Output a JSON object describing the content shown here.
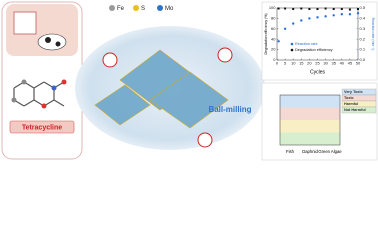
{
  "legend": [
    {
      "label": "Fe",
      "color": "#9a9a9a"
    },
    {
      "label": "S",
      "color": "#e8c21a"
    },
    {
      "label": "Mo",
      "color": "#2c74c9"
    }
  ],
  "molecule_label": "Tetracycline",
  "process_label": "Ball-milling",
  "chart_data": [
    {
      "type": "scatter",
      "xlabel": "Cycles",
      "ylabel": "Degradation efficiency (%)",
      "y2label": "Reaction rate (min⁻¹)",
      "xlim": [
        0,
        50
      ],
      "xticks": [
        0,
        5,
        10,
        15,
        20,
        25,
        30,
        35,
        40,
        45,
        50
      ],
      "ylim": [
        0,
        100
      ],
      "yticks": [
        0,
        20,
        40,
        60,
        80,
        100
      ],
      "y2lim": [
        0,
        0.5
      ],
      "y2ticks": [
        {
          "value": 0,
          "label": "0.0"
        },
        0.1,
        0.2,
        0.3,
        0.4,
        0.5
      ],
      "x": [
        1,
        5,
        10,
        15,
        20,
        25,
        30,
        35,
        40,
        45,
        50
      ],
      "series": [
        {
          "name": "Reaction rate",
          "color": "#2a6fd6",
          "axis": "y2",
          "values": [
            0.18,
            0.3,
            0.35,
            0.38,
            0.4,
            0.41,
            0.42,
            0.43,
            0.44,
            0.44,
            0.45
          ]
        },
        {
          "name": "Degradation efficiency",
          "color": "#111111",
          "values": [
            99,
            99,
            98,
            99,
            98,
            98,
            99,
            98,
            98,
            97,
            98
          ]
        }
      ]
    },
    {
      "type": "toxicity",
      "categories": [
        "Fish",
        "Daphnid",
        "Green Algae"
      ],
      "bands": [
        {
          "name": "Very Toxic",
          "color": "#cfe3f5"
        },
        {
          "name": "Toxic",
          "color": "#f5d9d3"
        },
        {
          "name": "Harmful",
          "color": "#f8f0c4"
        },
        {
          "name": "Not Harmful",
          "color": "#d7efcf"
        }
      ]
    }
  ]
}
